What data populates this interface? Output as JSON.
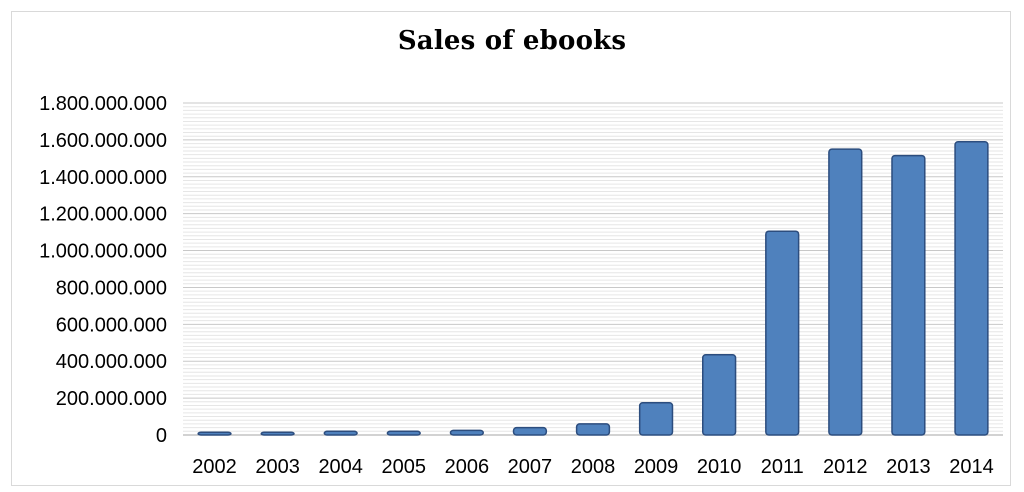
{
  "chart_data": {
    "type": "bar",
    "title": "Sales of ebooks",
    "xlabel": "",
    "ylabel": "",
    "categories": [
      "2002",
      "2003",
      "2004",
      "2005",
      "2006",
      "2007",
      "2008",
      "2009",
      "2010",
      "2011",
      "2012",
      "2013",
      "2014"
    ],
    "values": [
      15000000,
      15000000,
      20000000,
      20000000,
      25000000,
      40000000,
      60000000,
      175000000,
      435000000,
      1105000000,
      1550000000,
      1515000000,
      1590000000
    ],
    "ylim": [
      0,
      1800000000
    ],
    "yticks": [
      0,
      200000000,
      400000000,
      600000000,
      800000000,
      1000000000,
      1200000000,
      1400000000,
      1600000000,
      1800000000
    ],
    "ytick_labels": [
      "0",
      "200.000.000",
      "400.000.000",
      "600.000.000",
      "800.000.000",
      "1.000.000.000",
      "1.200.000.000",
      "1.400.000.000",
      "1.600.000.000",
      "1.800.000.000"
    ],
    "grid": true,
    "legend": "none",
    "colors": {
      "bar": "#4f81bd",
      "bar_edge": "#2c4d7e",
      "gridline": "#c8c8c8",
      "minor_gridline": "#e6e6e6"
    }
  }
}
